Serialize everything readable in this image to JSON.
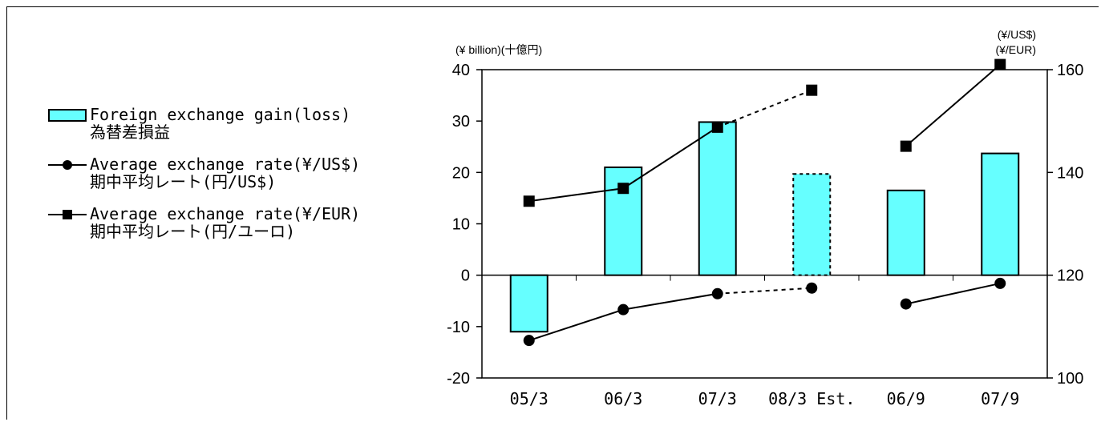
{
  "legend": [
    {
      "line1": "Foreign exchange gain(loss)",
      "line2": "為替差損益",
      "marker": "bar"
    },
    {
      "line1": "Average exchange rate(¥/US$)",
      "line2": "期中平均レート(円/US$)",
      "marker": "circle"
    },
    {
      "line1": "Average exchange rate(¥/EUR)",
      "line2": "期中平均レート(円/ユーロ)",
      "marker": "square"
    }
  ],
  "units": {
    "left": "(¥ billion)(十億円)",
    "right_line1": "(¥/US$)",
    "right_line2": "(¥/EUR)"
  },
  "colors": {
    "bar_fill": "#66ffff",
    "line": "#000000"
  },
  "chart_data": {
    "type": "bar",
    "categories": [
      "05/3",
      "06/3",
      "07/3",
      "08/3 Est.",
      "06/9",
      "07/9"
    ],
    "left_axis": {
      "ylim": [
        -20,
        40
      ],
      "ticks": [
        -20,
        -10,
        0,
        10,
        20,
        30,
        40
      ]
    },
    "right_axis": {
      "ylim": [
        100,
        160
      ],
      "ticks": [
        100,
        120,
        140,
        160
      ]
    },
    "series": [
      {
        "name": "Foreign exchange gain(loss)",
        "type": "bar",
        "axis": "left",
        "values": [
          -11,
          21,
          29.8,
          19.7,
          16.5,
          23.7
        ],
        "estimated_index": 3
      },
      {
        "name": "Average exchange rate(¥/US$)",
        "type": "line",
        "marker": "circle",
        "axis": "right",
        "values": [
          107.3,
          113.3,
          116.4,
          117.5,
          114.4,
          118.4
        ],
        "segments": [
          [
            0,
            2
          ],
          [
            4,
            5
          ]
        ],
        "dashed_segments": [
          [
            2,
            3
          ]
        ]
      },
      {
        "name": "Average exchange rate(¥/EUR)",
        "type": "line",
        "marker": "square",
        "axis": "right",
        "values": [
          134.4,
          136.9,
          148.8,
          156,
          145.1,
          161
        ],
        "segments": [
          [
            0,
            2
          ],
          [
            4,
            5
          ]
        ],
        "dashed_segments": [
          [
            2,
            3
          ]
        ]
      }
    ]
  }
}
